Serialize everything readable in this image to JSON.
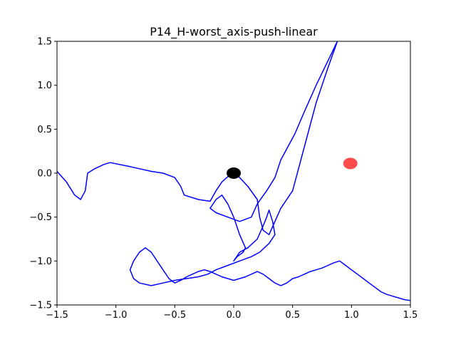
{
  "chart_data": {
    "type": "line",
    "title": "P14_H-worst_axis-push-linear",
    "xlabel": "",
    "ylabel": "",
    "xlim": [
      -1.5,
      1.5
    ],
    "ylim": [
      -1.5,
      1.5
    ],
    "x_ticks": [
      -1.5,
      -1.0,
      -0.5,
      0.0,
      0.5,
      1.0,
      1.5
    ],
    "y_ticks": [
      -1.5,
      -1.0,
      -0.5,
      0.0,
      0.5,
      1.0,
      1.5
    ],
    "x_tick_labels": [
      "−1.5",
      "−1.0",
      "−0.5",
      "0.0",
      "0.5",
      "1.0",
      "1.5"
    ],
    "y_tick_labels": [
      "−1.5",
      "−1.0",
      "−0.5",
      "0.0",
      "0.5",
      "1.0",
      "1.5"
    ],
    "grid": false,
    "legend": "none",
    "colors": {
      "path": "#0000ff",
      "start": "#000000",
      "goal": "#ff0000"
    },
    "markers": [
      {
        "label": "start",
        "x": 0.0,
        "y": 0.0,
        "color": "#000000"
      },
      {
        "label": "goal",
        "x": 0.99,
        "y": 0.11,
        "color": "#ff0000"
      }
    ],
    "series": [
      {
        "color": "#0000ff",
        "x": [
          -1.5,
          -1.42,
          -1.35,
          -1.3,
          -1.26,
          -1.24,
          -1.18,
          -1.1,
          -1.05,
          -0.9,
          -0.8,
          -0.7,
          -0.6,
          -0.5,
          -0.45,
          -0.42,
          -0.3,
          -0.2,
          -0.15,
          -0.1,
          0.0,
          0.05,
          0.12,
          0.2,
          0.22,
          0.25,
          0.3,
          0.35,
          0.4,
          0.5,
          0.6,
          0.7,
          0.8,
          0.88,
          0.7,
          0.6,
          0.52,
          0.4,
          0.35,
          0.28,
          0.2,
          0.15,
          0.05,
          -0.05,
          -0.15,
          -0.2,
          -0.15,
          -0.1,
          -0.05,
          0.0,
          0.05,
          0.1,
          0.08,
          0.03,
          0.0,
          0.05,
          0.12,
          0.2,
          0.25,
          0.28,
          0.3,
          0.33,
          0.35,
          0.3,
          0.22,
          0.15,
          0.05,
          -0.05,
          -0.15,
          -0.22,
          -0.3,
          -0.4,
          -0.5,
          -0.6,
          -0.7,
          -0.8,
          -0.85,
          -0.88,
          -0.85,
          -0.8,
          -0.75,
          -0.7,
          -0.65,
          -0.6,
          -0.55,
          -0.5,
          -0.45,
          -0.4,
          -0.35,
          -0.3,
          -0.25,
          -0.2,
          -0.15,
          -0.1,
          -0.05,
          0.0,
          0.05,
          0.1,
          0.15,
          0.2,
          0.25,
          0.3,
          0.35,
          0.4,
          0.45,
          0.5,
          0.55,
          0.6,
          0.65,
          0.7,
          0.75,
          0.8,
          0.85,
          0.9,
          0.95,
          1.0,
          1.05,
          1.1,
          1.15,
          1.2,
          1.25,
          1.3,
          1.35,
          1.4,
          1.45,
          1.5
        ],
        "y": [
          0.02,
          -0.1,
          -0.25,
          -0.3,
          -0.2,
          0.0,
          0.05,
          0.1,
          0.12,
          0.08,
          0.05,
          0.02,
          0.0,
          -0.05,
          -0.15,
          -0.25,
          -0.3,
          -0.32,
          -0.2,
          -0.1,
          0.02,
          -0.05,
          -0.15,
          -0.3,
          -0.5,
          -0.65,
          -0.7,
          -0.55,
          -0.4,
          -0.2,
          0.3,
          0.8,
          1.2,
          1.5,
          1.0,
          0.7,
          0.45,
          0.15,
          -0.05,
          -0.2,
          -0.35,
          -0.5,
          -0.55,
          -0.5,
          -0.45,
          -0.4,
          -0.3,
          -0.25,
          -0.35,
          -0.5,
          -0.7,
          -0.85,
          -0.9,
          -0.95,
          -1.0,
          -0.9,
          -0.85,
          -0.75,
          -0.6,
          -0.5,
          -0.42,
          -0.55,
          -0.7,
          -0.8,
          -0.9,
          -0.95,
          -1.0,
          -1.05,
          -1.1,
          -1.15,
          -1.18,
          -1.2,
          -1.22,
          -1.25,
          -1.28,
          -1.25,
          -1.2,
          -1.1,
          -1.0,
          -0.9,
          -0.85,
          -0.9,
          -1.0,
          -1.1,
          -1.2,
          -1.25,
          -1.22,
          -1.18,
          -1.15,
          -1.12,
          -1.1,
          -1.12,
          -1.15,
          -1.18,
          -1.2,
          -1.22,
          -1.2,
          -1.18,
          -1.15,
          -1.12,
          -1.15,
          -1.2,
          -1.25,
          -1.28,
          -1.25,
          -1.2,
          -1.18,
          -1.15,
          -1.12,
          -1.1,
          -1.08,
          -1.05,
          -1.02,
          -1.0,
          -1.05,
          -1.1,
          -1.15,
          -1.2,
          -1.25,
          -1.3,
          -1.35,
          -1.38,
          -1.4,
          -1.42,
          -1.44,
          -1.45
        ]
      }
    ]
  }
}
